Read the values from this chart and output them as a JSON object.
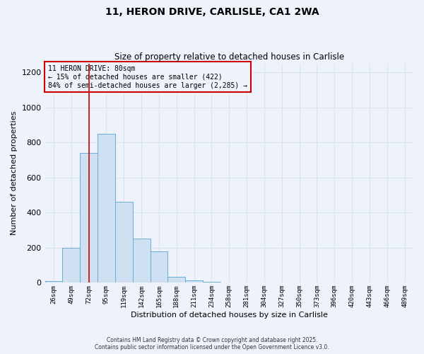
{
  "title": "11, HERON DRIVE, CARLISLE, CA1 2WA",
  "subtitle": "Size of property relative to detached houses in Carlisle",
  "xlabel": "Distribution of detached houses by size in Carlisle",
  "ylabel": "Number of detached properties",
  "bar_labels": [
    "26sqm",
    "49sqm",
    "72sqm",
    "95sqm",
    "119sqm",
    "142sqm",
    "165sqm",
    "188sqm",
    "211sqm",
    "234sqm",
    "258sqm",
    "281sqm",
    "304sqm",
    "327sqm",
    "350sqm",
    "373sqm",
    "396sqm",
    "420sqm",
    "443sqm",
    "466sqm",
    "489sqm"
  ],
  "bar_values": [
    10,
    200,
    740,
    850,
    460,
    250,
    180,
    35,
    15,
    5,
    1,
    0,
    0,
    0,
    0,
    0,
    0,
    0,
    0,
    0,
    1
  ],
  "bar_color": "#cfe0f2",
  "bar_edge_color": "#6aaed6",
  "vline_x_index": 2,
  "vline_color": "#cc0000",
  "ylim": [
    0,
    1250
  ],
  "yticks": [
    0,
    200,
    400,
    600,
    800,
    1000,
    1200
  ],
  "annotation_title": "11 HERON DRIVE: 80sqm",
  "annotation_line1": "← 15% of detached houses are smaller (422)",
  "annotation_line2": "84% of semi-detached houses are larger (2,285) →",
  "annotation_box_color": "#cc0000",
  "footer1": "Contains HM Land Registry data © Crown copyright and database right 2025.",
  "footer2": "Contains public sector information licensed under the Open Government Licence v3.0.",
  "background_color": "#eef2fb",
  "grid_color": "#d8e4f0"
}
